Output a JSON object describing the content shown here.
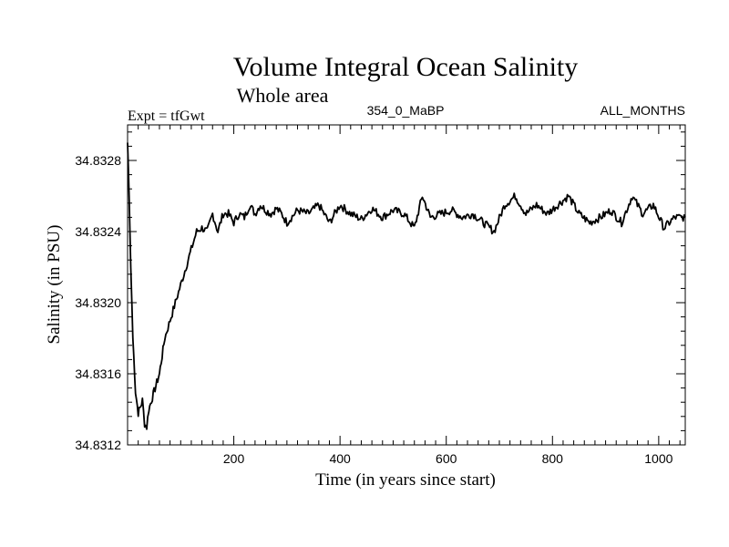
{
  "chart_data": {
    "type": "line",
    "title": "Volume Integral Ocean Salinity",
    "subtitle": "Whole area",
    "header_left": "Expt = tfGwt",
    "header_center": "354_0_MaBP",
    "header_right": "ALL_MONTHS",
    "xlabel": "Time (in years since start)",
    "ylabel": "Salinity (in PSU)",
    "xlim": [
      0,
      1050
    ],
    "ylim": [
      34.8312,
      34.833
    ],
    "x_ticks": [
      200,
      400,
      600,
      800,
      1000
    ],
    "x_tick_labels": [
      "200",
      "400",
      "600",
      "800",
      "1000"
    ],
    "y_ticks": [
      34.8312,
      34.8316,
      34.832,
      34.8324,
      34.8328
    ],
    "y_tick_labels": [
      "34.8312",
      "34.8316",
      "34.8320",
      "34.8324",
      "34.8328"
    ],
    "series": [
      {
        "name": "Salinity",
        "color": "#000000",
        "x": [
          0,
          3,
          6,
          10,
          15,
          20,
          25,
          28,
          32,
          36,
          40,
          45,
          50,
          55,
          60,
          65,
          70,
          80,
          90,
          100,
          110,
          120,
          130,
          140,
          150,
          160,
          170,
          180,
          190,
          200,
          210,
          220,
          230,
          240,
          250,
          260,
          270,
          280,
          290,
          300,
          320,
          340,
          360,
          380,
          400,
          420,
          440,
          460,
          480,
          500,
          520,
          540,
          555,
          570,
          590,
          610,
          630,
          650,
          670,
          690,
          710,
          730,
          750,
          770,
          790,
          810,
          830,
          850,
          870,
          890,
          910,
          930,
          950,
          970,
          990,
          1010,
          1030,
          1050
        ],
        "values": [
          34.8329,
          34.8326,
          34.8322,
          34.8318,
          34.8315,
          34.83138,
          34.83142,
          34.83145,
          34.83132,
          34.8313,
          34.8314,
          34.83145,
          34.8315,
          34.83155,
          34.8316,
          34.8317,
          34.8318,
          34.8319,
          34.832,
          34.8321,
          34.8322,
          34.8323,
          34.8324,
          34.83242,
          34.8324,
          34.8325,
          34.8324,
          34.8325,
          34.8325,
          34.83245,
          34.8325,
          34.83248,
          34.83255,
          34.8325,
          34.83255,
          34.83252,
          34.8325,
          34.83253,
          34.8325,
          34.83245,
          34.83252,
          34.8325,
          34.83255,
          34.83245,
          34.83255,
          34.8325,
          34.83247,
          34.83253,
          34.83248,
          34.83252,
          34.8325,
          34.83242,
          34.8326,
          34.83248,
          34.8325,
          34.83252,
          34.83248,
          34.8325,
          34.83245,
          34.8324,
          34.83255,
          34.8326,
          34.8325,
          34.83255,
          34.8325,
          34.83255,
          34.8326,
          34.8325,
          34.83245,
          34.83248,
          34.83252,
          34.83245,
          34.8326,
          34.8325,
          34.83255,
          34.83242,
          34.83248,
          34.83248
        ]
      }
    ]
  }
}
